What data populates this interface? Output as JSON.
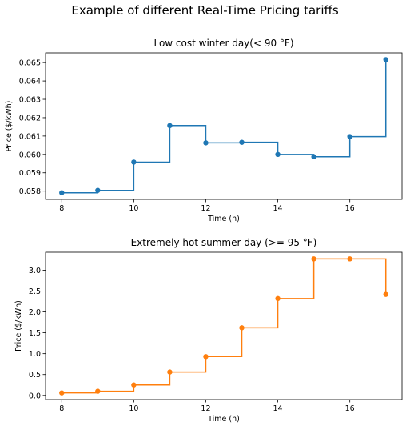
{
  "figure": {
    "suptitle": "Example of different Real-Time Pricing tariffs"
  },
  "chart_data": [
    {
      "type": "line",
      "step": "post",
      "markers": "circle",
      "title": "Low cost winter day(< 90 °F)",
      "xlabel": "Time (h)",
      "ylabel": "Price ($/kWh)",
      "color": "#1f77b4",
      "x": [
        8,
        9,
        10,
        11,
        12,
        13,
        14,
        15,
        16,
        17
      ],
      "y": [
        0.05791,
        0.05804,
        0.05958,
        0.06157,
        0.06063,
        0.06066,
        0.06,
        0.05987,
        0.06097,
        0.06516
      ],
      "xlim": [
        7.55,
        17.45
      ],
      "ylim": [
        0.05755,
        0.06553
      ],
      "xticks": [
        8,
        10,
        12,
        14,
        16
      ],
      "xtick_labels": [
        "8",
        "10",
        "12",
        "14",
        "16"
      ],
      "yticks": [
        0.058,
        0.059,
        0.06,
        0.061,
        0.062,
        0.063,
        0.064,
        0.065
      ],
      "ytick_labels": [
        "0.058",
        "0.059",
        "0.060",
        "0.061",
        "0.062",
        "0.063",
        "0.064",
        "0.065"
      ],
      "grid": false
    },
    {
      "type": "line",
      "step": "post",
      "markers": "circle",
      "title": "Extremely hot summer day (>= 95 °F)",
      "xlabel": "Time (h)",
      "ylabel": "Price ($/kWh)",
      "color": "#ff7f0e",
      "x": [
        8,
        9,
        10,
        11,
        12,
        13,
        14,
        15,
        16,
        17
      ],
      "y": [
        0.06,
        0.1,
        0.25,
        0.56,
        0.93,
        1.62,
        2.32,
        3.27,
        3.27,
        2.42
      ],
      "xlim": [
        7.55,
        17.45
      ],
      "ylim": [
        -0.1,
        3.43
      ],
      "xticks": [
        8,
        10,
        12,
        14,
        16
      ],
      "xtick_labels": [
        "8",
        "10",
        "12",
        "14",
        "16"
      ],
      "yticks": [
        0.0,
        0.5,
        1.0,
        1.5,
        2.0,
        2.5,
        3.0
      ],
      "ytick_labels": [
        "0.0",
        "0.5",
        "1.0",
        "1.5",
        "2.0",
        "2.5",
        "3.0"
      ],
      "grid": false
    }
  ]
}
